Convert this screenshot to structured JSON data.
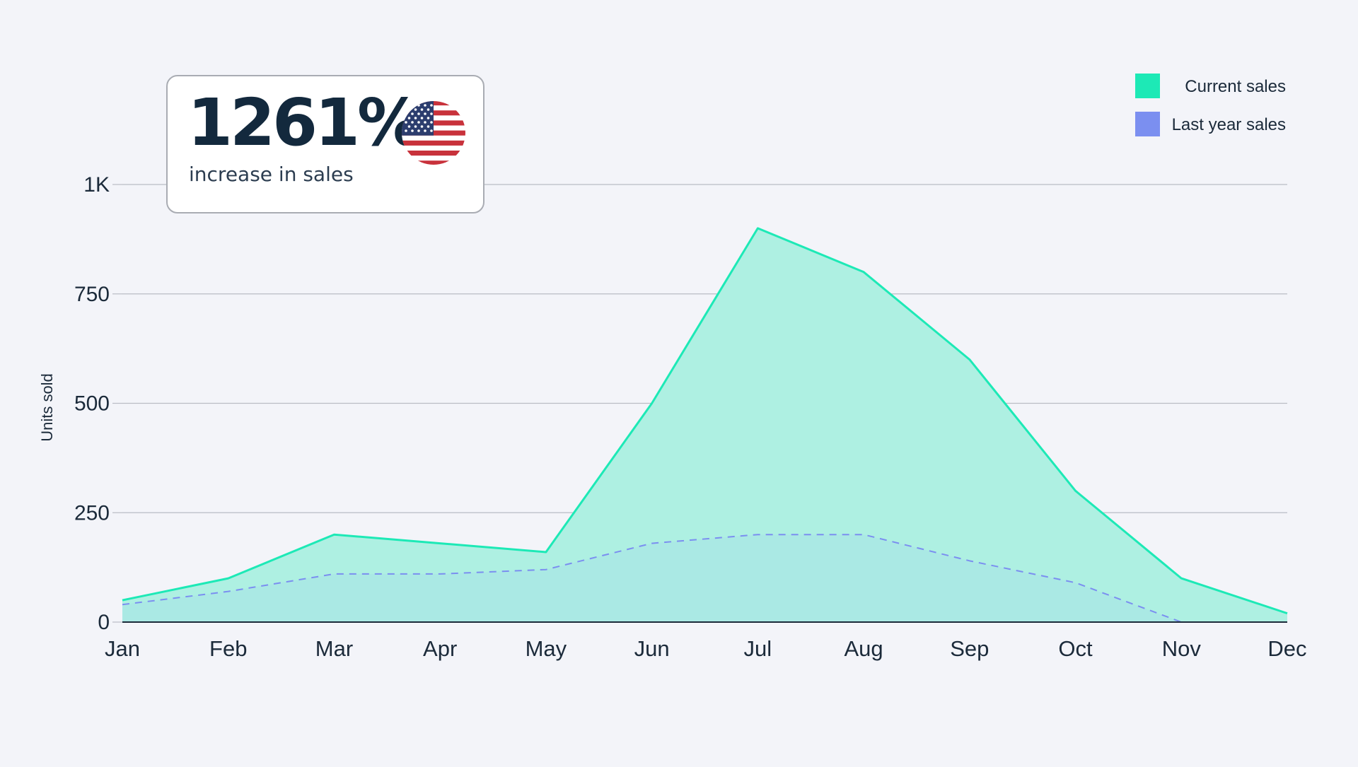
{
  "chart_data": {
    "type": "area",
    "title": "",
    "xlabel": "",
    "ylabel": "Units sold",
    "categories": [
      "Jan",
      "Feb",
      "Mar",
      "Apr",
      "May",
      "Jun",
      "Jul",
      "Aug",
      "Sep",
      "Oct",
      "Nov",
      "Dec"
    ],
    "series": [
      {
        "name": "Current sales",
        "values": [
          50,
          100,
          200,
          180,
          160,
          500,
          900,
          800,
          600,
          300,
          100,
          20
        ],
        "color": "#1de9b6",
        "fill": "#aef0e2",
        "style": "solid"
      },
      {
        "name": "Last year sales",
        "values": [
          40,
          70,
          110,
          110,
          120,
          180,
          200,
          200,
          140,
          90,
          0,
          0
        ],
        "color": "#7b8ff0",
        "fill": "#a7e3e6",
        "style": "dashed"
      }
    ],
    "ylim": [
      0,
      1000
    ],
    "yticks": [
      0,
      250,
      500,
      750,
      1000
    ],
    "ytick_labels": [
      "0",
      "250",
      "500",
      "750",
      "1K"
    ],
    "grid": true,
    "legend_position": "top-right"
  },
  "stat_card": {
    "value": "1261%",
    "caption": "increase in sales",
    "flag_icon": "us-flag-icon"
  },
  "colors": {
    "background": "#f3f4f9",
    "current": "#1de9b6",
    "last_year": "#7b8ff0",
    "text": "#1b2a3a",
    "grid": "#b9bcc4"
  }
}
